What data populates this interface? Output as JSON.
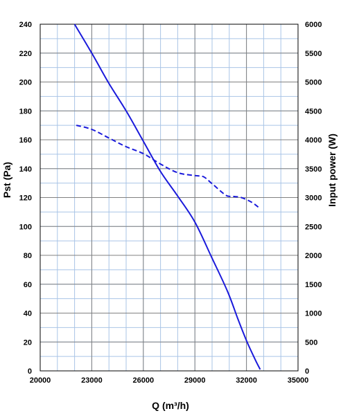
{
  "chart_data": {
    "type": "line",
    "xlabel": "Q (m³/h)",
    "ylabel_left": "Pst (Pa)",
    "ylabel_right": "Input power  (W)",
    "xlim": [
      20000,
      35000
    ],
    "ylim_left": [
      0,
      240
    ],
    "ylim_right": [
      0,
      6000
    ],
    "x_ticks": [
      20000,
      23000,
      26000,
      29000,
      32000,
      35000
    ],
    "x_tick_labels": [
      "20000",
      "23000",
      "26000",
      "29000",
      "32000",
      "35000"
    ],
    "y_left_ticks": [
      0,
      20,
      40,
      60,
      80,
      100,
      120,
      140,
      160,
      180,
      200,
      220,
      240
    ],
    "y_left_tick_labels": [
      "0",
      "20",
      "40",
      "60",
      "80",
      "100",
      "120",
      "140",
      "160",
      "180",
      "200",
      "220",
      "240"
    ],
    "y_right_ticks": [
      0,
      500,
      1000,
      1500,
      2000,
      2500,
      3000,
      3500,
      4000,
      4500,
      5000,
      5500,
      6000
    ],
    "y_right_tick_labels": [
      "0",
      "500",
      "1000",
      "1500",
      "2000",
      "2500",
      "3000",
      "3500",
      "4000",
      "4500",
      "5000",
      "5500",
      "6000"
    ],
    "grid": true,
    "series": [
      {
        "axis": "left",
        "style": "solid",
        "color": "#1a1adb",
        "x": [
          22000,
          23000,
          24000,
          25000,
          26000,
          27000,
          28000,
          29000,
          30000,
          30900,
          31500,
          32000,
          32500,
          32800
        ],
        "values": [
          240,
          220,
          199,
          180,
          159,
          138,
          121,
          103,
          78,
          55,
          36,
          21,
          8,
          1
        ]
      },
      {
        "axis": "right",
        "style": "dashed",
        "color": "#1a1adb",
        "x": [
          22100,
          23000,
          24000,
          25000,
          26000,
          27000,
          28000,
          29000,
          29500,
          30000,
          30800,
          31200,
          31700,
          32300,
          32700
        ],
        "values": [
          4250,
          4180,
          4030,
          3880,
          3760,
          3580,
          3430,
          3380,
          3360,
          3240,
          3040,
          3020,
          3000,
          2920,
          2830
        ]
      }
    ],
    "colors": {
      "gridMajor": "#808080",
      "gridMinor": "#a9c4e6",
      "frame": "#000000",
      "curve": "#1a1adb"
    }
  }
}
